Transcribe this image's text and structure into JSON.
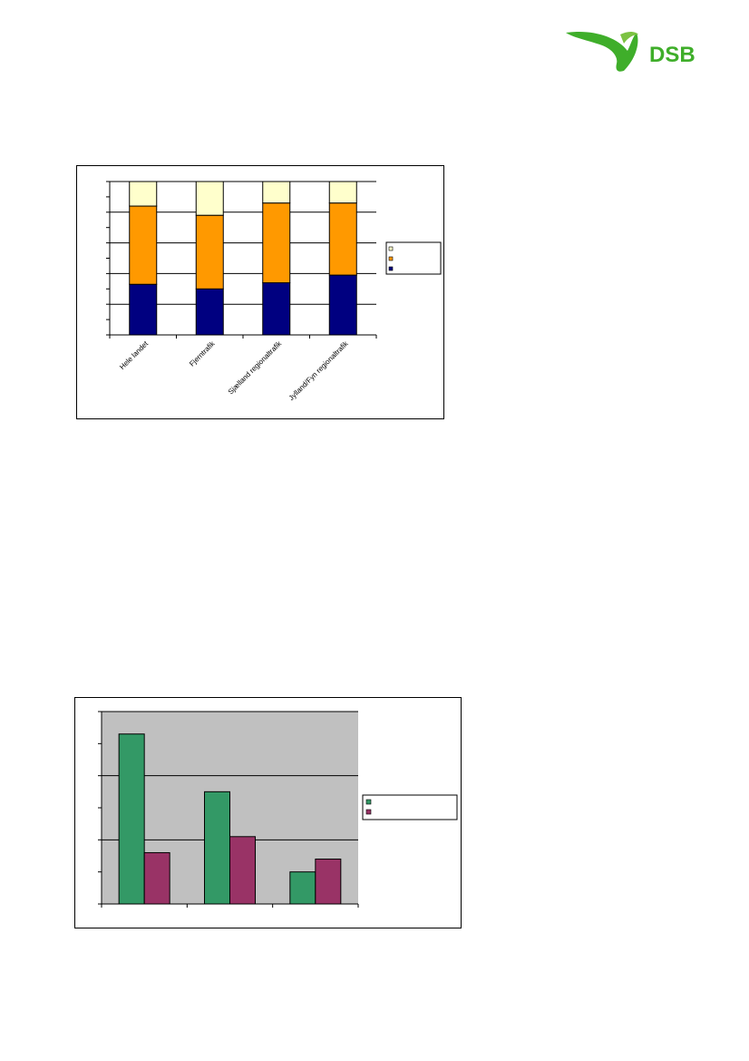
{
  "logo": {
    "text": "DSB",
    "green": "#3fae2a"
  },
  "chart_data": [
    {
      "type": "bar",
      "stacked": true,
      "categories": [
        "Hele landet",
        "Fjerntrafik",
        "Sjælland regionaltrafik",
        "Jylland/Fyn regionaltrafik"
      ],
      "series": [
        {
          "color": "#000080",
          "values": [
            33,
            30,
            34,
            39
          ]
        },
        {
          "color": "#ff9900",
          "values": [
            51,
            48,
            52,
            47
          ]
        },
        {
          "color": "#ffffcc",
          "values": [
            16,
            22,
            14,
            14
          ]
        }
      ],
      "ylim": [
        0,
        100
      ],
      "grid": true,
      "legend": "right"
    },
    {
      "type": "bar",
      "stacked": false,
      "categories": [
        "",
        "",
        ""
      ],
      "series": [
        {
          "color": "#339966",
          "values": [
            53,
            35,
            10
          ]
        },
        {
          "color": "#993366",
          "values": [
            16,
            21,
            14
          ]
        }
      ],
      "ylim": [
        0,
        60
      ],
      "grid": true,
      "legend": "right",
      "plot_background": "#c0c0c0"
    }
  ]
}
